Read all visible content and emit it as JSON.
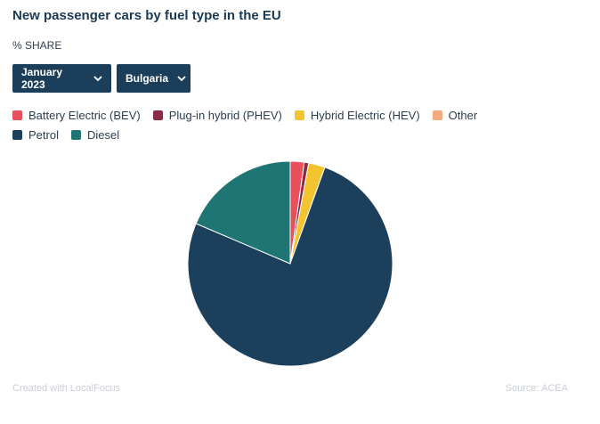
{
  "header": {
    "title": "New passenger cars by fuel type in the EU",
    "subtitle": "% SHARE"
  },
  "filters": {
    "period": "January 2023",
    "country": "Bulgaria"
  },
  "colors": {
    "dropdown_bg": "#1b3f5b",
    "background": "#ffffff"
  },
  "chart_data": {
    "type": "pie",
    "title": "New passenger cars by fuel type in the EU",
    "subtitle": "% SHARE",
    "categories": [
      "Battery Electric (BEV)",
      "Plug-in hybrid (PHEV)",
      "Hybrid Electric (HEV)",
      "Other",
      "Petrol",
      "Diesel"
    ],
    "values": [
      2.2,
      0.7,
      2.6,
      0.0,
      75.9,
      18.6
    ],
    "colors": [
      "#e8505b",
      "#8b2b45",
      "#f4c430",
      "#f5a97f",
      "#1c3f5c",
      "#1f7573"
    ],
    "legend_position": "top-left",
    "start_angle_deg": 0,
    "direction": "clockwise"
  },
  "footer": {
    "credit": "Created with LocalFocus",
    "source": "Source: ACEA"
  }
}
